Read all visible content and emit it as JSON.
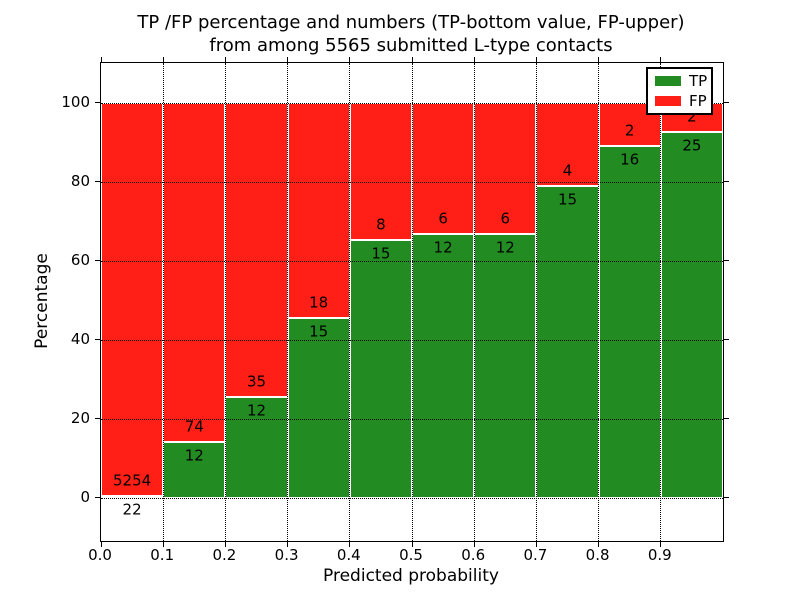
{
  "figure": {
    "title_line1": "TP /FP percentage and numbers (TP-bottom value, FP-upper)",
    "title_line2": "from among 5565 submitted L-type contacts"
  },
  "chart_data": {
    "type": "bar",
    "stacked": true,
    "normalized": "each bar totals 100%",
    "title": "TP /FP percentage and numbers (TP-bottom value, FP-upper)\nfrom among 5565 submitted L-type contacts",
    "xlabel": "Predicted probability",
    "ylabel": "Percentage",
    "total_contacts": 5565,
    "bin_start": [
      0.0,
      0.1,
      0.2,
      0.3,
      0.4,
      0.5,
      0.6,
      0.7,
      0.8,
      0.9
    ],
    "bin_width": 0.1,
    "series": [
      {
        "name": "TP",
        "color": "#228b22",
        "counts": [
          22,
          12,
          12,
          15,
          15,
          12,
          12,
          15,
          16,
          25
        ]
      },
      {
        "name": "FP",
        "color": "#ff1f16",
        "counts": [
          5254,
          74,
          35,
          18,
          8,
          6,
          6,
          4,
          2,
          2
        ]
      }
    ],
    "tp_percent": [
      0.42,
      13.95,
      25.53,
      45.45,
      65.22,
      66.67,
      66.67,
      78.95,
      88.89,
      92.59
    ],
    "xtick_labels": [
      "0.0",
      "0.1",
      "0.2",
      "0.3",
      "0.4",
      "0.5",
      "0.6",
      "0.7",
      "0.8",
      "0.9"
    ],
    "ytick_labels": [
      "0",
      "20",
      "40",
      "60",
      "80",
      "100"
    ],
    "yticks": [
      0,
      20,
      40,
      60,
      80,
      100
    ],
    "xlim": [
      0.0,
      1.0
    ],
    "ylim": [
      -11,
      110
    ],
    "grid": "dotted black, on top of bars",
    "bar_edge_color": "#ffffff",
    "axis_color": "#000000",
    "background_color": "#ffffff",
    "legend": {
      "position": "upper right",
      "entries": [
        {
          "label": "TP",
          "color": "#228b22"
        },
        {
          "label": "FP",
          "color": "#ff1f16"
        }
      ]
    }
  }
}
